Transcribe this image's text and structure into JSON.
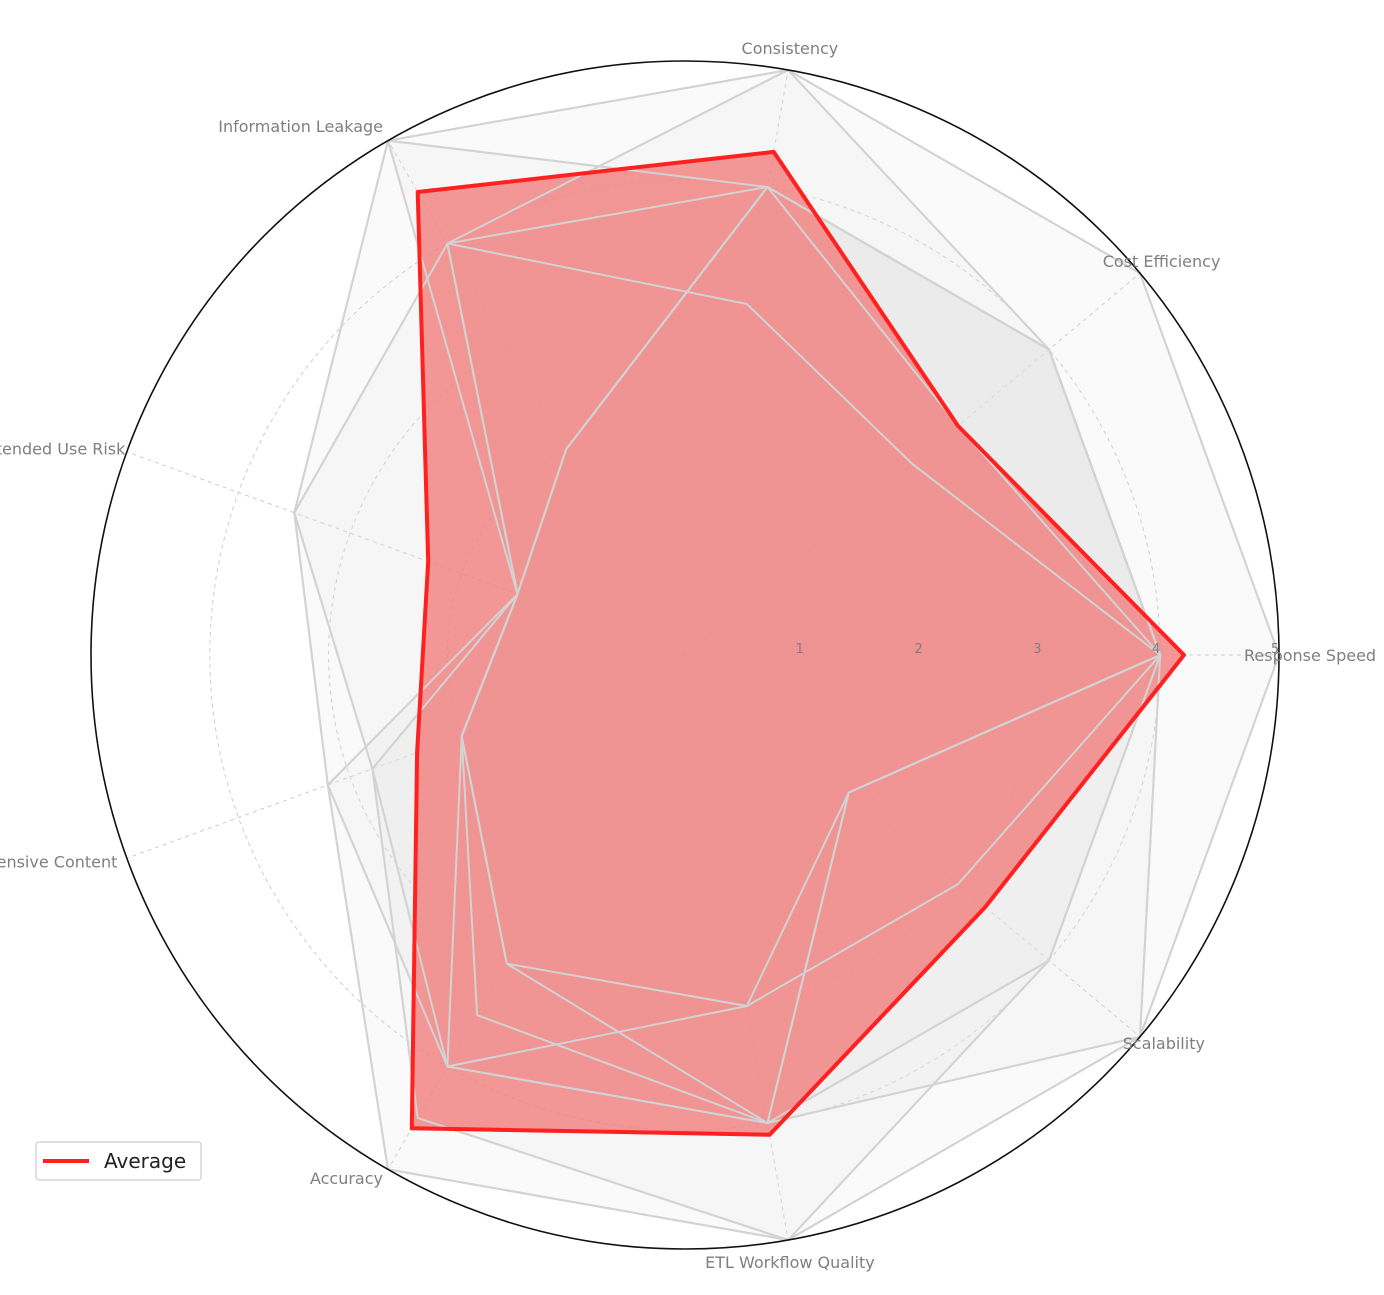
{
  "chart_data": {
    "type": "radar",
    "axes": [
      "Response Speed",
      "Cost Efficiency",
      "Consistency",
      "Information Leakage",
      "Unintended Use Risk",
      "Offensive Content",
      "Accuracy",
      "ETL Workflow Quality",
      "Scalability"
    ],
    "rlim": [
      0,
      5
    ],
    "rticks": [
      "1",
      "2",
      "3",
      "4",
      "5"
    ],
    "grid": true,
    "legend": {
      "placement": "lower-left",
      "entries": [
        "Average"
      ]
    },
    "average": {
      "name": "Average",
      "color": "#ff2020",
      "fill": "#f08080",
      "values": [
        4.2,
        3.0,
        4.3,
        4.5,
        2.3,
        2.4,
        4.6,
        4.1,
        3.3
      ]
    },
    "background_series": [
      {
        "values": [
          5,
          5,
          5,
          5,
          3.5,
          3.2,
          5,
          5,
          5
        ]
      },
      {
        "values": [
          4,
          4,
          5,
          4,
          3.5,
          2.8,
          4.5,
          5,
          4
        ]
      },
      {
        "values": [
          4,
          4,
          4,
          5,
          1.5,
          2.8,
          4,
          4,
          5
        ]
      },
      {
        "values": [
          4,
          4,
          4,
          4,
          1.5,
          2.0,
          4,
          4,
          4
        ]
      },
      {
        "values": [
          4,
          4,
          4,
          2,
          1.5,
          2.0,
          3,
          3,
          3
        ]
      },
      {
        "values": [
          4,
          2.5,
          3,
          4,
          1.5,
          2.0,
          3.5,
          4,
          1.8
        ]
      },
      {
        "values": [
          4,
          3,
          4,
          2,
          1.5,
          3.2,
          4,
          3,
          1.8
        ]
      },
      {
        "values": [
          4,
          4,
          4,
          2,
          1.5,
          2.0,
          3,
          4,
          1.8
        ]
      }
    ]
  }
}
